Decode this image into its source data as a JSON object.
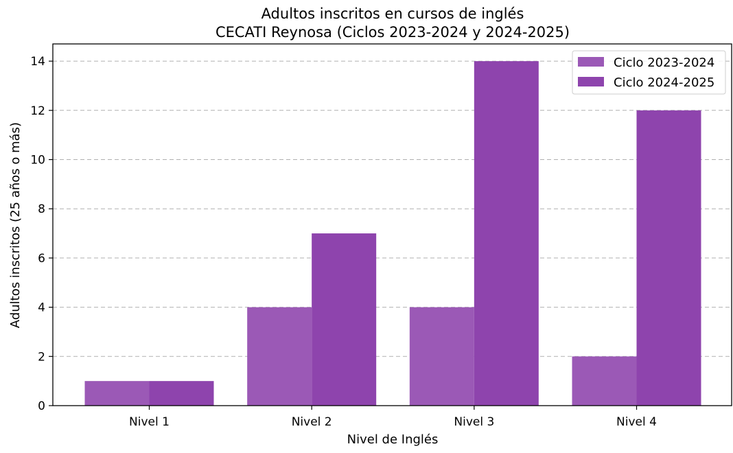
{
  "chart_data": {
    "type": "bar",
    "title": "Adultos inscritos en cursos de inglés\nCECATI Reynosa (Ciclos 2023-2024 y 2024-2025)",
    "title_lines": [
      "Adultos inscritos en cursos de inglés",
      "CECATI Reynosa (Ciclos 2023-2024 y 2024-2025)"
    ],
    "xlabel": "Nivel de Inglés",
    "ylabel": "Adultos inscritos (25 años o más)",
    "categories": [
      "Nivel 1",
      "Nivel 2",
      "Nivel 3",
      "Nivel 4"
    ],
    "series": [
      {
        "name": "Ciclo 2023-2024",
        "values": [
          1,
          4,
          4,
          2
        ],
        "color": "#9b59b6"
      },
      {
        "name": "Ciclo 2024-2025",
        "values": [
          1,
          7,
          14,
          12
        ],
        "color": "#8e44ad"
      }
    ],
    "ylim": [
      0,
      14.7
    ],
    "yticks": [
      0,
      2,
      4,
      6,
      8,
      10,
      12,
      14
    ],
    "grid": "y-dashed",
    "legend_position": "top-right"
  }
}
